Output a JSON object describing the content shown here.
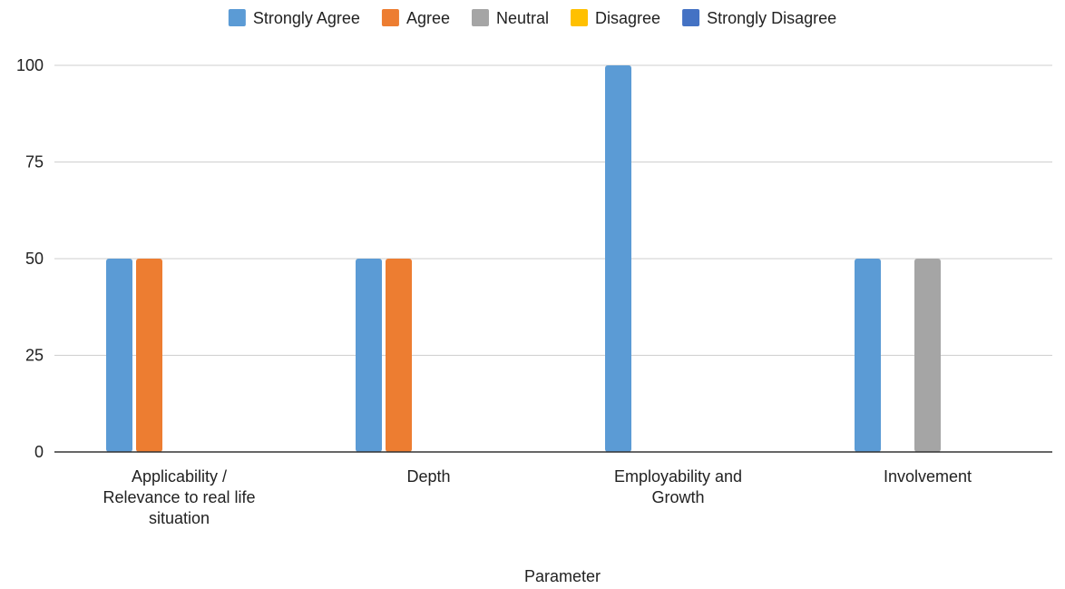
{
  "chart_data": {
    "type": "bar",
    "xlabel": "Parameter",
    "ylabel": "",
    "ylim": [
      0,
      100
    ],
    "yticks": [
      0,
      25,
      50,
      75,
      100
    ],
    "grid": true,
    "legend_position": "top",
    "categories": [
      [
        "Applicability /",
        "Relevance to real life",
        "situation"
      ],
      [
        "Depth"
      ],
      [
        "Employability and",
        "Growth"
      ],
      [
        "Involvement"
      ]
    ],
    "series": [
      {
        "name": "Strongly Agree",
        "color": "#5b9bd5",
        "values": [
          50,
          50,
          100,
          50
        ]
      },
      {
        "name": "Agree",
        "color": "#ed7d31",
        "values": [
          50,
          50,
          0,
          0
        ]
      },
      {
        "name": "Neutral",
        "color": "#a5a5a5",
        "values": [
          0,
          0,
          0,
          50
        ]
      },
      {
        "name": "Disagree",
        "color": "#ffc000",
        "values": [
          0,
          0,
          0,
          0
        ]
      },
      {
        "name": "Strongly Disagree",
        "color": "#4472c4",
        "values": [
          0,
          0,
          0,
          0
        ]
      }
    ]
  }
}
